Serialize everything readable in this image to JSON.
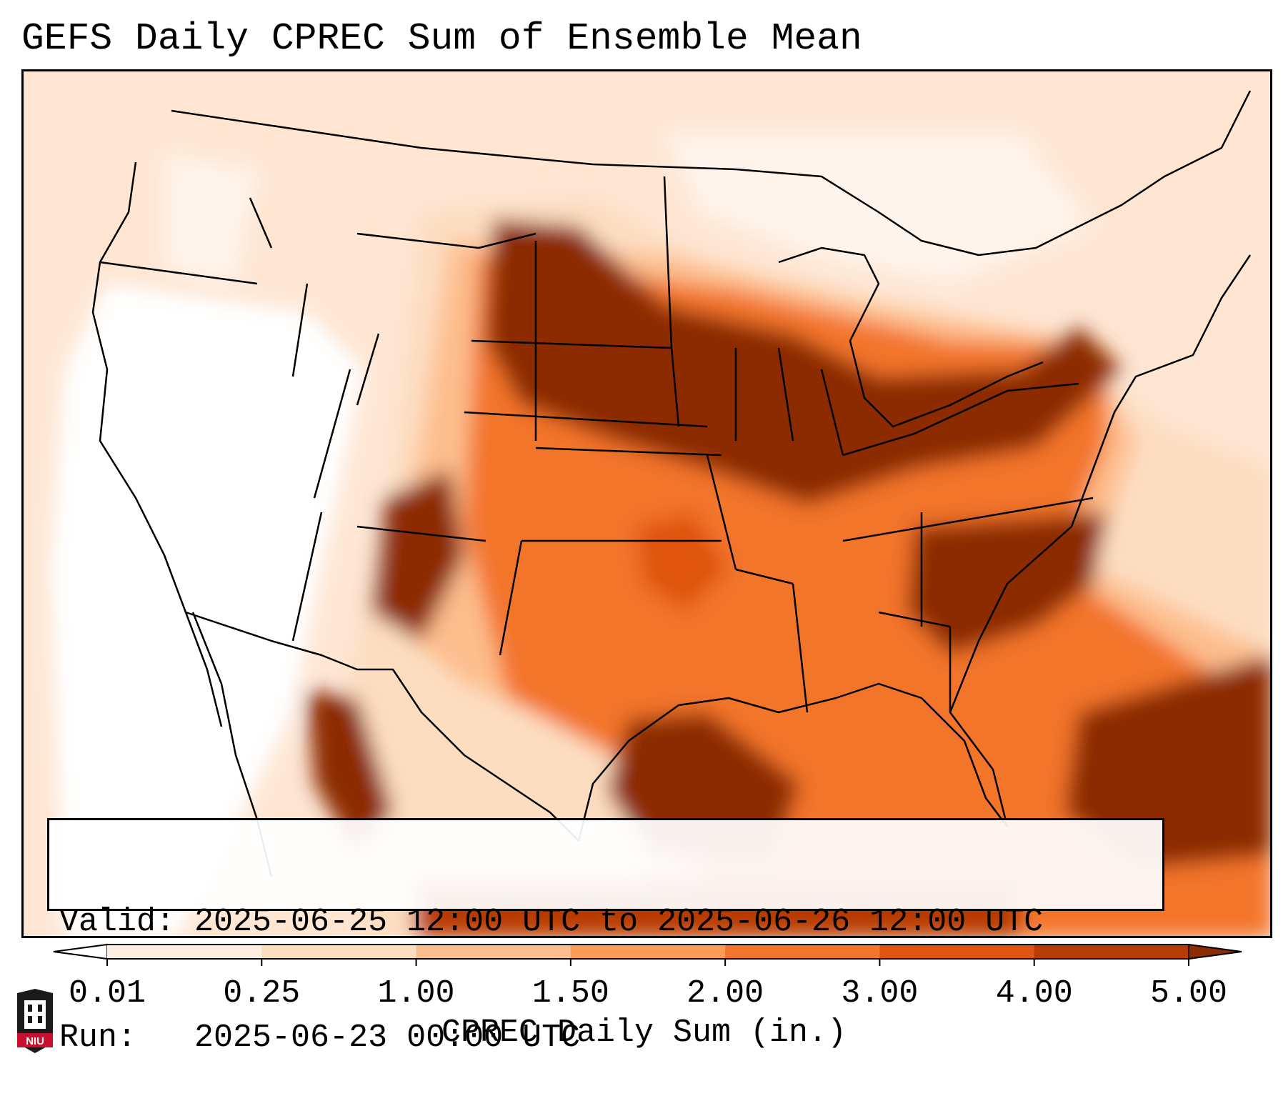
{
  "title": "GEFS Daily CPREC Sum of Ensemble Mean",
  "info": {
    "valid": "Valid: 2025-06-25 12:00 UTC to 2025-06-26 12:00 UTC",
    "run": "Run:   2025-06-23 00:00 UTC"
  },
  "colorbar": {
    "label": "CPREC Daily Sum (in.)",
    "ticks": [
      "0.01",
      "0.25",
      "1.00",
      "1.50",
      "2.00",
      "3.00",
      "4.00",
      "5.00"
    ],
    "colors": [
      "#feeee2",
      "#fdddc0",
      "#fdbe8d",
      "#fd9b57",
      "#f3752b",
      "#df5410",
      "#b73b03"
    ],
    "under_color": "#ffffff",
    "over_color": "#8c2c04",
    "extend": "both"
  },
  "logo": {
    "text": "NIU",
    "name": "niu-logo"
  },
  "map": {
    "region": "Contiguous United States, southern Canada, northern Mexico",
    "heavy_precip_areas": [
      "Northern Plains",
      "Upper Midwest",
      "Ohio Valley",
      "Mid-Atlantic",
      "Carolinas",
      "New Mexico",
      "Western Gulf of Mexico",
      "Western Atlantic"
    ]
  }
}
